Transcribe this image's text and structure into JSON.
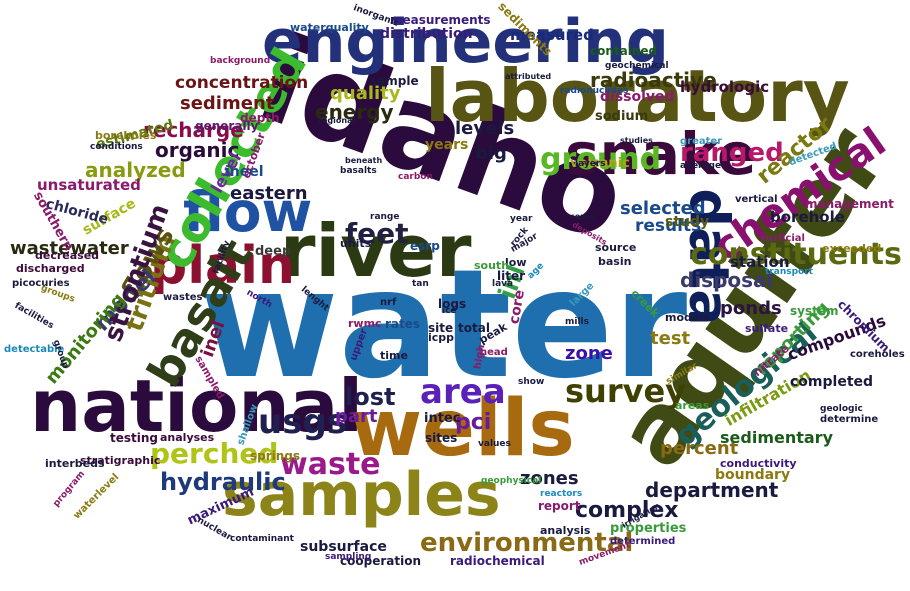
{
  "words": [
    {
      "text": "water",
      "color": "#1f6fae"
    },
    {
      "text": "idaho",
      "color": "#2b0a3d"
    },
    {
      "text": "aquifer",
      "color": "#3f4a14"
    },
    {
      "text": "laboratory",
      "color": "#585413"
    },
    {
      "text": "national",
      "color": "#2b0a3d"
    },
    {
      "text": "wells",
      "color": "#a76a0f"
    },
    {
      "text": "samples",
      "color": "#8c8418"
    },
    {
      "text": "river",
      "color": "#2b3a12"
    },
    {
      "text": "engineering",
      "color": "#22317a"
    },
    {
      "text": "plain",
      "color": "#8c1030"
    },
    {
      "text": "snake",
      "color": "#3a0a3c"
    },
    {
      "text": "flow",
      "color": "#1f52a3"
    },
    {
      "text": "data",
      "color": "#0f1f5a"
    },
    {
      "text": "collected",
      "color": "#3dbb2f"
    },
    {
      "text": "basalt",
      "color": "#2f3d18"
    },
    {
      "text": "chemical",
      "color": "#8a1070"
    },
    {
      "text": "constituents",
      "color": "#5a6a10"
    },
    {
      "text": "ground",
      "color": "#58b822"
    },
    {
      "text": "area",
      "color": "#5a20b8"
    },
    {
      "text": "usgs",
      "color": "#202050"
    },
    {
      "text": "survey",
      "color": "#404000"
    },
    {
      "text": "geological",
      "color": "#1a5e5a"
    },
    {
      "text": "environmental",
      "color": "#8a6a14"
    },
    {
      "text": "waste",
      "color": "#9a1a8a"
    },
    {
      "text": "perched",
      "color": "#b0c418"
    },
    {
      "text": "hydraulic",
      "color": "#1f3a7a"
    },
    {
      "text": "feet",
      "color": "#202040"
    },
    {
      "text": "tritium",
      "color": "#7a7014"
    },
    {
      "text": "flows",
      "color": "#5a5010"
    },
    {
      "text": "ranged",
      "color": "#b8186a"
    },
    {
      "text": "model",
      "color": "#3a3a6a"
    },
    {
      "text": "inl",
      "color": "#34a043"
    },
    {
      "text": "strontium",
      "color": "#3a1440"
    },
    {
      "text": "lost",
      "color": "#202050"
    },
    {
      "text": "part",
      "color": "#6a1a9a"
    },
    {
      "text": "pci",
      "color": "#6a1a9a"
    },
    {
      "text": "department",
      "color": "#1a1a40"
    },
    {
      "text": "complex",
      "color": "#1a1a40"
    },
    {
      "text": "radioactive",
      "color": "#3a3a0a"
    },
    {
      "text": "sediment",
      "color": "#6a1414"
    },
    {
      "text": "concentration",
      "color": "#6a1414"
    },
    {
      "text": "recharge",
      "color": "#8a0a4a"
    },
    {
      "text": "organic",
      "color": "#2a0a3a"
    },
    {
      "text": "analyzed",
      "color": "#8a9a10"
    },
    {
      "text": "reporting",
      "color": "#3a9a3a"
    },
    {
      "text": "disposal",
      "color": "#3a3a6a"
    },
    {
      "text": "selected",
      "color": "#1a4a8a"
    },
    {
      "text": "results",
      "color": "#1a4a8a"
    },
    {
      "text": "zones",
      "color": "#1a1a40"
    },
    {
      "text": "zone",
      "color": "#3a10a8"
    },
    {
      "text": "percent",
      "color": "#8a6a10"
    },
    {
      "text": "energy",
      "color": "#2a2a10"
    },
    {
      "text": "quality",
      "color": "#a8b818"
    },
    {
      "text": "levels",
      "color": "#1a1a40"
    },
    {
      "text": "big",
      "color": "#1a1a40"
    },
    {
      "text": "eastern",
      "color": "#1a1a40"
    },
    {
      "text": "inel",
      "color": "#7a1040"
    },
    {
      "text": "ponds",
      "color": "#2a1440"
    },
    {
      "text": "station",
      "color": "#1a1a40"
    },
    {
      "text": "borehole",
      "color": "#1a1a40"
    },
    {
      "text": "reactor",
      "color": "#7a7a10"
    },
    {
      "text": "test",
      "color": "#8a7a10"
    },
    {
      "text": "study",
      "color": "#5a5a10"
    },
    {
      "text": "sedimentary",
      "color": "#1a5a1a"
    },
    {
      "text": "infiltration",
      "color": "#7a9a10"
    },
    {
      "text": "compounds",
      "color": "#2a0a3a"
    },
    {
      "text": "completed",
      "color": "#1a1a40"
    },
    {
      "text": "subsurface",
      "color": "#1a1a40"
    },
    {
      "text": "radiochemical",
      "color": "#3a1a7a"
    },
    {
      "text": "cooperation",
      "color": "#1a1a40"
    },
    {
      "text": "monitoring",
      "color": "#3a7a10"
    },
    {
      "text": "wastewater",
      "color": "#2a2a10"
    },
    {
      "text": "unsaturated",
      "color": "#8a1a6a"
    },
    {
      "text": "level",
      "color": "#6a2a9a"
    },
    {
      "text": "ineel",
      "color": "#1a4a8a"
    },
    {
      "text": "measured",
      "color": "#1a2a7a"
    },
    {
      "text": "distribution",
      "color": "#3a1a7a"
    },
    {
      "text": "measurements",
      "color": "#3a1a7a"
    },
    {
      "text": "dissolved",
      "color": "#8a1a6a"
    },
    {
      "text": "sodium",
      "color": "#3a3a10"
    },
    {
      "text": "contained",
      "color": "#1a5a1a"
    },
    {
      "text": "hydrologic",
      "color": "#3a0a3a"
    },
    {
      "text": "generally",
      "color": "#5a1a6a"
    },
    {
      "text": "estimated",
      "color": "#5a7a10"
    },
    {
      "text": "depth",
      "color": "#8a1a6a"
    },
    {
      "text": "volcanic",
      "color": "#a8a818"
    },
    {
      "text": "years",
      "color": "#8a7a10"
    },
    {
      "text": "sample",
      "color": "#1a1a40"
    },
    {
      "text": "surface",
      "color": "#a8b818"
    },
    {
      "text": "chloride",
      "color": "#2a2a5a"
    },
    {
      "text": "southern",
      "color": "#8a1a6a"
    },
    {
      "text": "feet_2",
      "color": "#202040"
    },
    {
      "text": "deep",
      "color": "#3a3a3a"
    },
    {
      "text": "units",
      "color": "#1a1a40"
    },
    {
      "text": "decreased",
      "color": "#3a0a3a"
    },
    {
      "text": "discharged",
      "color": "#3a0a3a"
    },
    {
      "text": "rates",
      "color": "#1a4a8a"
    },
    {
      "text": "core",
      "color": "#8a1a6a"
    },
    {
      "text": "total",
      "color": "#1a1a40"
    },
    {
      "text": "site",
      "color": "#1a1a40"
    },
    {
      "text": "sites",
      "color": "#1a1a40"
    },
    {
      "text": "intec",
      "color": "#1a1a40"
    },
    {
      "text": "icpp",
      "color": "#1a1a40"
    },
    {
      "text": "liter",
      "color": "#1a1a40"
    },
    {
      "text": "logs",
      "color": "#1a1a40"
    },
    {
      "text": "source",
      "color": "#1a1a40"
    },
    {
      "text": "basin",
      "color": "#1a1a40"
    },
    {
      "text": "testing",
      "color": "#3a0a3a"
    },
    {
      "text": "analyses",
      "color": "#3a0a3a"
    },
    {
      "text": "springs",
      "color": "#8a7a10"
    },
    {
      "text": "maximum",
      "color": "#3a1a7a"
    },
    {
      "text": "stratigraphic",
      "color": "#3a0a3a"
    },
    {
      "text": "report",
      "color": "#8a1a6a"
    },
    {
      "text": "analysis",
      "color": "#1a1a40"
    },
    {
      "text": "properties",
      "color": "#3a9a3a"
    },
    {
      "text": "boundary",
      "color": "#8a7a10"
    },
    {
      "text": "conductivity",
      "color": "#3a1a7a"
    },
    {
      "text": "determine",
      "color": "#1a1a40"
    },
    {
      "text": "sampling",
      "color": "#3a1a7a"
    },
    {
      "text": "contaminant",
      "color": "#1a1a40"
    },
    {
      "text": "determined",
      "color": "#3a1a7a"
    },
    {
      "text": "interbeds",
      "color": "#1a1a40"
    },
    {
      "text": "waterquality",
      "color": "#1a4a8a"
    },
    {
      "text": "sediments",
      "color": "#8a7a10"
    },
    {
      "text": "management",
      "color": "#8a1a6a"
    },
    {
      "text": "exceeded",
      "color": "#8a7a10"
    },
    {
      "text": "transport",
      "color": "#1a8aba"
    },
    {
      "text": "studies",
      "color": "#1a1a40"
    },
    {
      "text": "cores",
      "color": "#1a1a40"
    },
    {
      "text": "vertical",
      "color": "#1a1a40"
    },
    {
      "text": "average",
      "color": "#1a1a40"
    },
    {
      "text": "detected",
      "color": "#3a9aba"
    },
    {
      "text": "sulfate",
      "color": "#3a1a7a"
    },
    {
      "text": "system",
      "color": "#3a9a3a"
    },
    {
      "text": "chromium",
      "color": "#3a1a7a"
    },
    {
      "text": "coreholes",
      "color": "#1a1a40"
    },
    {
      "text": "models",
      "color": "#1a1a40"
    },
    {
      "text": "nitrate",
      "color": "#8a1a6a"
    },
    {
      "text": "geologic",
      "color": "#1a1a40"
    },
    {
      "text": "areas",
      "color": "#3a9a3a"
    },
    {
      "text": "similar",
      "color": "#8a7a10"
    },
    {
      "text": "creek",
      "color": "#3a9a3a"
    },
    {
      "text": "time",
      "color": "#1a1a40"
    },
    {
      "text": "head",
      "color": "#8a1a6a"
    },
    {
      "text": "high",
      "color": "#8a1a6a"
    },
    {
      "text": "peak",
      "color": "#1a1a40"
    },
    {
      "text": "upper",
      "color": "#3a1a7a"
    },
    {
      "text": "rwmc",
      "color": "#8a1a6a"
    },
    {
      "text": "nrf",
      "color": "#1a1a40"
    },
    {
      "text": "tan",
      "color": "#1a1a40"
    },
    {
      "text": "show",
      "color": "#1a1a40"
    },
    {
      "text": "mills",
      "color": "#1a1a40"
    },
    {
      "text": "large",
      "color": "#3a9aba"
    },
    {
      "text": "lava",
      "color": "#1a1a40"
    },
    {
      "text": "low",
      "color": "#1a1a40"
    },
    {
      "text": "major",
      "color": "#1a1a40"
    },
    {
      "text": "south",
      "color": "#3a9a3a"
    },
    {
      "text": "esrp",
      "color": "#1a4a8a"
    },
    {
      "text": "facility",
      "color": "#1a1a40"
    },
    {
      "text": "range",
      "color": "#1a1a40"
    },
    {
      "text": "carbon",
      "color": "#8a1a6a"
    },
    {
      "text": "basalts",
      "color": "#1a1a40"
    },
    {
      "text": "beneath",
      "color": "#1a1a40"
    },
    {
      "text": "regional",
      "color": "#1a1a40"
    },
    {
      "text": "october",
      "color": "#8a1a6a"
    },
    {
      "text": "boreholes",
      "color": "#8a7a10"
    },
    {
      "text": "conditions",
      "color": "#1a1a40"
    },
    {
      "text": "background",
      "color": "#8a1a6a"
    },
    {
      "text": "inorganic",
      "color": "#1a1a40"
    },
    {
      "text": "attributed",
      "color": "#1a1a40"
    },
    {
      "text": "radionuclides",
      "color": "#1a4a8a"
    },
    {
      "text": "geochemical",
      "color": "#1a1a40"
    },
    {
      "text": "greater",
      "color": "#3a9aba"
    },
    {
      "text": "layers",
      "color": "#1a1a40"
    },
    {
      "text": "year",
      "color": "#1a1a40"
    },
    {
      "text": "deposits",
      "color": "#8a1a6a"
    },
    {
      "text": "surficial",
      "color": "#8a1a6a"
    },
    {
      "text": "picocuries",
      "color": "#1a1a40"
    },
    {
      "text": "groups",
      "color": "#8a7a10"
    },
    {
      "text": "facilities",
      "color": "#1a1a40"
    },
    {
      "text": "detectable",
      "color": "#1a8aba"
    },
    {
      "text": "wastes",
      "color": "#1a1a40"
    },
    {
      "text": "sampled",
      "color": "#8a1a6a"
    },
    {
      "text": "shallow",
      "color": "#3a9aba"
    },
    {
      "text": "values",
      "color": "#1a1a40"
    },
    {
      "text": "geophysical",
      "color": "#3a9a3a"
    },
    {
      "text": "reactors",
      "color": "#1a8aba"
    },
    {
      "text": "irrigation",
      "color": "#1a1a40"
    },
    {
      "text": "movement",
      "color": "#8a1a6a"
    },
    {
      "text": "nuclear",
      "color": "#1a1a40"
    },
    {
      "text": "program",
      "color": "#8a1a6a"
    },
    {
      "text": "waterlevel",
      "color": "#8a7a10"
    },
    {
      "text": "group",
      "color": "#1a1a40"
    },
    {
      "text": "north",
      "color": "#3a1a7a"
    },
    {
      "text": "lenght",
      "color": "#1a1a40"
    },
    {
      "text": "age",
      "color": "#1a8aba"
    },
    {
      "text": "rock",
      "color": "#1a1a40"
    },
    {
      "text": "ice",
      "color": "#1a1a40"
    }
  ]
}
